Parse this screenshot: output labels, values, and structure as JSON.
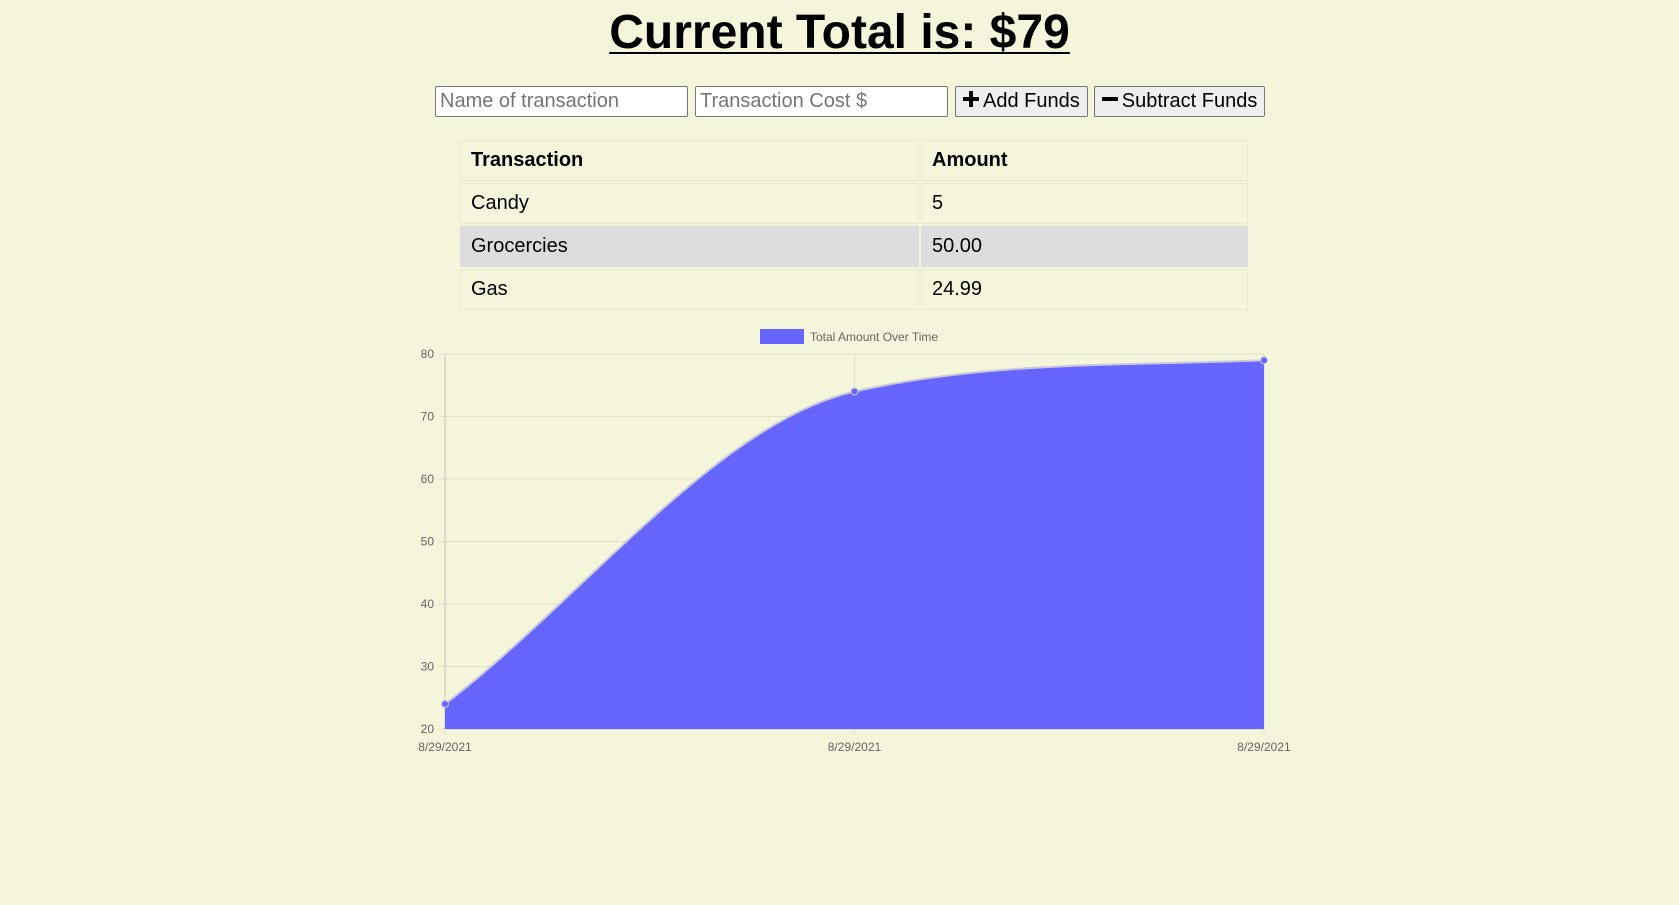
{
  "page": {
    "title": "Current Total is: $79"
  },
  "form": {
    "name_placeholder": "Name of transaction",
    "name_value": "",
    "cost_placeholder": "Transaction Cost $",
    "cost_value": "",
    "add_label": "Add Funds",
    "add_icon": "plus-icon",
    "subtract_label": "Subtract Funds",
    "subtract_icon": "minus-icon"
  },
  "table": {
    "headers": [
      "Transaction",
      "Amount"
    ],
    "rows": [
      {
        "name": "Candy",
        "amount": "5"
      },
      {
        "name": "Grocercies",
        "amount": "50.00"
      },
      {
        "name": "Gas",
        "amount": "24.99"
      }
    ]
  },
  "colors": {
    "background": "#f5f5dc",
    "fill": "#6666ff",
    "alt_row": "#dddddd"
  },
  "chart_data": {
    "type": "area",
    "x": [
      "8/29/2021",
      "8/29/2021",
      "8/29/2021"
    ],
    "series": [
      {
        "name": "Total Amount Over Time",
        "values": [
          24,
          74,
          79
        ]
      }
    ],
    "ylim": [
      20,
      80
    ],
    "yticks": [
      20,
      30,
      40,
      50,
      60,
      70,
      80
    ],
    "legend_position": "top",
    "grid": true,
    "fill_color": "#6666ff"
  }
}
